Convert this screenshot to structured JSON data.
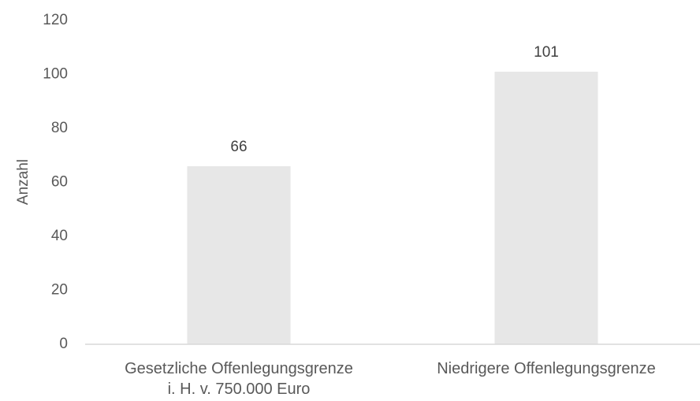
{
  "chart_data": {
    "type": "bar",
    "y_label": "Anzahl",
    "categories": [
      "Gesetzliche Offenlegungsgrenze\ni. H. v. 750.000 Euro",
      "Niedrigere Offenlegungsgrenze"
    ],
    "values": [
      66,
      101
    ],
    "color": "#e7e7e7",
    "ylim": [
      0,
      120
    ],
    "yticks": [
      0,
      20,
      40,
      60,
      80,
      100,
      120
    ],
    "grid": false
  }
}
